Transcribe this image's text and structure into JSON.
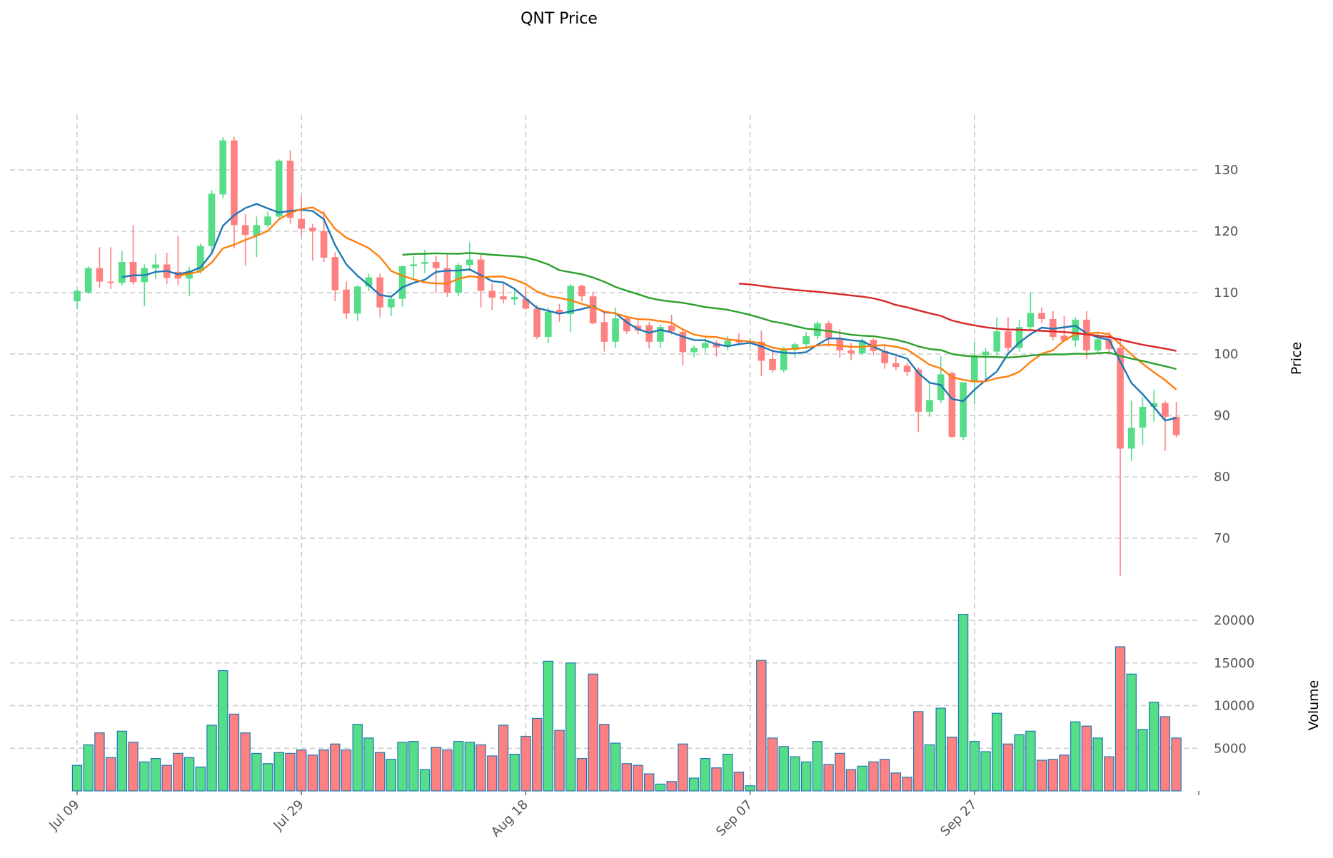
{
  "chart_data": {
    "type": "candlestick",
    "title": "QNT Price",
    "price_panel": {
      "ylabel": "Price",
      "ylim": [
        60.7,
        139.2
      ],
      "yticks": [
        70,
        80,
        90,
        100,
        110,
        120,
        130
      ]
    },
    "volume_panel": {
      "ylabel": "Volume",
      "ylim": [
        0,
        21000
      ],
      "yticks": [
        5000,
        10000,
        15000,
        20000
      ]
    },
    "x_ticks": [
      {
        "day": 0,
        "label": "Jul 09"
      },
      {
        "day": 20,
        "label": "Jul 29"
      },
      {
        "day": 40,
        "label": "Aug 18"
      },
      {
        "day": 60,
        "label": "Sep 07"
      },
      {
        "day": 80,
        "label": "Sep 27"
      },
      {
        "day": 100,
        "label": ""
      }
    ],
    "grid": true,
    "colors": {
      "up": "#55dd88",
      "down": "#ff8080",
      "volume_edge": "#1f77b4",
      "grid": "#cccccc"
    },
    "moving_averages": [
      {
        "window": 5,
        "color": "#1f77b4"
      },
      {
        "window": 10,
        "color": "#ff7f0e"
      },
      {
        "window": 30,
        "color": "#2ca02c"
      },
      {
        "window": 60,
        "color": "#d62728"
      }
    ],
    "ohlc": [
      [
        108.6,
        110.6,
        107.3,
        110.3
      ],
      [
        110.0,
        114.3,
        109.8,
        114.0
      ],
      [
        114.0,
        117.4,
        110.8,
        111.8
      ],
      [
        111.8,
        117.4,
        110.6,
        111.6
      ],
      [
        111.6,
        116.8,
        111.2,
        115.0
      ],
      [
        115.0,
        121.0,
        111.3,
        111.7
      ],
      [
        111.7,
        114.6,
        107.8,
        114.0
      ],
      [
        114.0,
        116.3,
        112.2,
        114.6
      ],
      [
        114.6,
        116.5,
        111.4,
        112.4
      ],
      [
        113.4,
        119.3,
        111.2,
        112.3
      ],
      [
        112.3,
        114.2,
        109.4,
        113.6
      ],
      [
        113.5,
        118.0,
        113.1,
        117.6
      ],
      [
        117.6,
        126.7,
        116.3,
        126.1
      ],
      [
        126.0,
        135.3,
        125.4,
        134.8
      ],
      [
        134.8,
        135.4,
        117.2,
        121.0
      ],
      [
        121.0,
        122.8,
        114.4,
        119.4
      ],
      [
        119.3,
        122.4,
        115.8,
        121.0
      ],
      [
        121.0,
        123.2,
        120.6,
        122.4
      ],
      [
        122.4,
        131.7,
        122.0,
        131.5
      ],
      [
        131.5,
        133.2,
        121.2,
        122.2
      ],
      [
        122.0,
        125.6,
        119.2,
        120.4
      ],
      [
        120.6,
        121.2,
        115.2,
        120.0
      ],
      [
        120.0,
        123.3,
        115.0,
        115.7
      ],
      [
        115.8,
        116.6,
        108.6,
        110.4
      ],
      [
        110.5,
        111.8,
        105.7,
        106.6
      ],
      [
        106.6,
        111.2,
        105.4,
        111.0
      ],
      [
        111.0,
        113.1,
        110.2,
        112.5
      ],
      [
        112.5,
        113.1,
        106.0,
        107.6
      ],
      [
        107.6,
        109.6,
        106.2,
        109.0
      ],
      [
        109.0,
        114.4,
        107.7,
        114.3
      ],
      [
        114.3,
        116.0,
        112.4,
        114.6
      ],
      [
        114.7,
        117.0,
        113.2,
        115.0
      ],
      [
        115.0,
        116.0,
        110.0,
        114.0
      ],
      [
        114.0,
        116.4,
        109.3,
        110.0
      ],
      [
        110.0,
        114.8,
        109.4,
        114.5
      ],
      [
        114.5,
        118.2,
        113.5,
        115.4
      ],
      [
        115.4,
        116.4,
        107.6,
        110.3
      ],
      [
        110.3,
        111.5,
        107.2,
        109.2
      ],
      [
        109.4,
        111.6,
        108.2,
        108.9
      ],
      [
        108.9,
        110.8,
        108.0,
        109.3
      ],
      [
        109.0,
        111.0,
        107.2,
        107.4
      ],
      [
        107.4,
        108.0,
        102.4,
        102.8
      ],
      [
        102.8,
        107.6,
        101.8,
        106.9
      ],
      [
        107.2,
        108.2,
        105.2,
        106.5
      ],
      [
        106.5,
        111.4,
        103.6,
        111.1
      ],
      [
        111.1,
        111.3,
        108.6,
        109.4
      ],
      [
        109.4,
        110.2,
        104.8,
        105.0
      ],
      [
        105.2,
        107.0,
        100.4,
        102.0
      ],
      [
        102.0,
        107.6,
        101.0,
        105.8
      ],
      [
        105.8,
        106.0,
        103.3,
        103.7
      ],
      [
        104.6,
        105.5,
        103.2,
        103.8
      ],
      [
        104.7,
        105.2,
        100.9,
        102.0
      ],
      [
        102.0,
        104.8,
        101.0,
        104.4
      ],
      [
        104.6,
        106.4,
        103.2,
        103.7
      ],
      [
        103.6,
        104.2,
        98.2,
        100.3
      ],
      [
        100.3,
        101.4,
        99.5,
        101.0
      ],
      [
        101.0,
        102.6,
        100.2,
        101.8
      ],
      [
        101.8,
        102.2,
        99.6,
        101.1
      ],
      [
        101.2,
        103.0,
        100.6,
        102.2
      ],
      [
        102.2,
        103.4,
        101.6,
        101.9
      ],
      [
        101.9,
        102.6,
        101.2,
        102.1
      ],
      [
        102.0,
        103.8,
        96.4,
        98.9
      ],
      [
        99.2,
        100.8,
        97.0,
        97.4
      ],
      [
        97.4,
        101.2,
        97.0,
        100.7
      ],
      [
        100.7,
        101.9,
        99.4,
        101.6
      ],
      [
        101.6,
        103.6,
        100.8,
        102.9
      ],
      [
        102.9,
        105.4,
        102.4,
        105.0
      ],
      [
        105.0,
        105.4,
        101.2,
        102.6
      ],
      [
        102.6,
        104.0,
        99.4,
        100.6
      ],
      [
        100.6,
        101.8,
        99.0,
        100.1
      ],
      [
        100.1,
        102.6,
        99.8,
        102.2
      ],
      [
        102.3,
        102.6,
        99.8,
        100.5
      ],
      [
        100.5,
        101.4,
        97.6,
        98.5
      ],
      [
        98.5,
        99.6,
        97.4,
        97.9
      ],
      [
        98.1,
        98.6,
        96.4,
        97.1
      ],
      [
        97.5,
        97.8,
        87.3,
        90.6
      ],
      [
        90.6,
        95.4,
        89.8,
        92.5
      ],
      [
        92.5,
        99.6,
        92.0,
        96.7
      ],
      [
        96.9,
        97.2,
        86.3,
        86.5
      ],
      [
        86.5,
        95.4,
        86.0,
        95.4
      ],
      [
        95.4,
        102.0,
        91.8,
        99.8
      ],
      [
        99.8,
        101.0,
        95.4,
        100.4
      ],
      [
        100.4,
        106.0,
        99.8,
        103.7
      ],
      [
        103.7,
        106.0,
        100.4,
        101.0
      ],
      [
        101.0,
        105.6,
        100.4,
        104.4
      ],
      [
        104.4,
        110.0,
        104.0,
        106.7
      ],
      [
        106.7,
        107.6,
        105.0,
        105.7
      ],
      [
        105.7,
        107.0,
        102.2,
        102.8
      ],
      [
        103.0,
        106.2,
        102.0,
        102.2
      ],
      [
        102.2,
        106.0,
        101.2,
        105.6
      ],
      [
        105.6,
        107.0,
        99.2,
        100.6
      ],
      [
        100.6,
        103.4,
        100.2,
        102.4
      ],
      [
        102.4,
        103.6,
        100.0,
        100.8
      ],
      [
        101.0,
        102.6,
        63.9,
        84.6
      ],
      [
        84.6,
        92.4,
        82.6,
        88.0
      ],
      [
        88.0,
        93.0,
        85.2,
        91.4
      ],
      [
        91.4,
        94.2,
        89.0,
        92.0
      ],
      [
        92.0,
        92.4,
        84.2,
        89.8
      ],
      [
        89.8,
        92.2,
        86.4,
        86.8
      ]
    ],
    "volume": [
      3000,
      5400,
      6800,
      3900,
      7000,
      5700,
      3400,
      3800,
      3000,
      4400,
      3900,
      2800,
      7700,
      14100,
      9000,
      6800,
      4400,
      3200,
      4500,
      4400,
      4800,
      4200,
      4800,
      5500,
      4800,
      7800,
      6200,
      4500,
      3700,
      5700,
      5800,
      2500,
      5100,
      4800,
      5800,
      5700,
      5400,
      4100,
      7700,
      4300,
      6400,
      8500,
      15200,
      7100,
      15000,
      3800,
      13700,
      7800,
      5600,
      3200,
      3000,
      2000,
      800,
      1100,
      5500,
      1500,
      3800,
      2700,
      4300,
      2200,
      600,
      15300,
      6200,
      5200,
      4000,
      3400,
      5800,
      3100,
      4400,
      2500,
      2900,
      3400,
      3700,
      2100,
      1600,
      9300,
      5400,
      9700,
      6300,
      20700,
      5800,
      4600,
      9100,
      5500,
      6600,
      7000,
      3600,
      3700,
      4200,
      8100,
      7600,
      6200,
      4000,
      16900,
      13700,
      7200,
      10400,
      8700,
      6200
    ]
  }
}
